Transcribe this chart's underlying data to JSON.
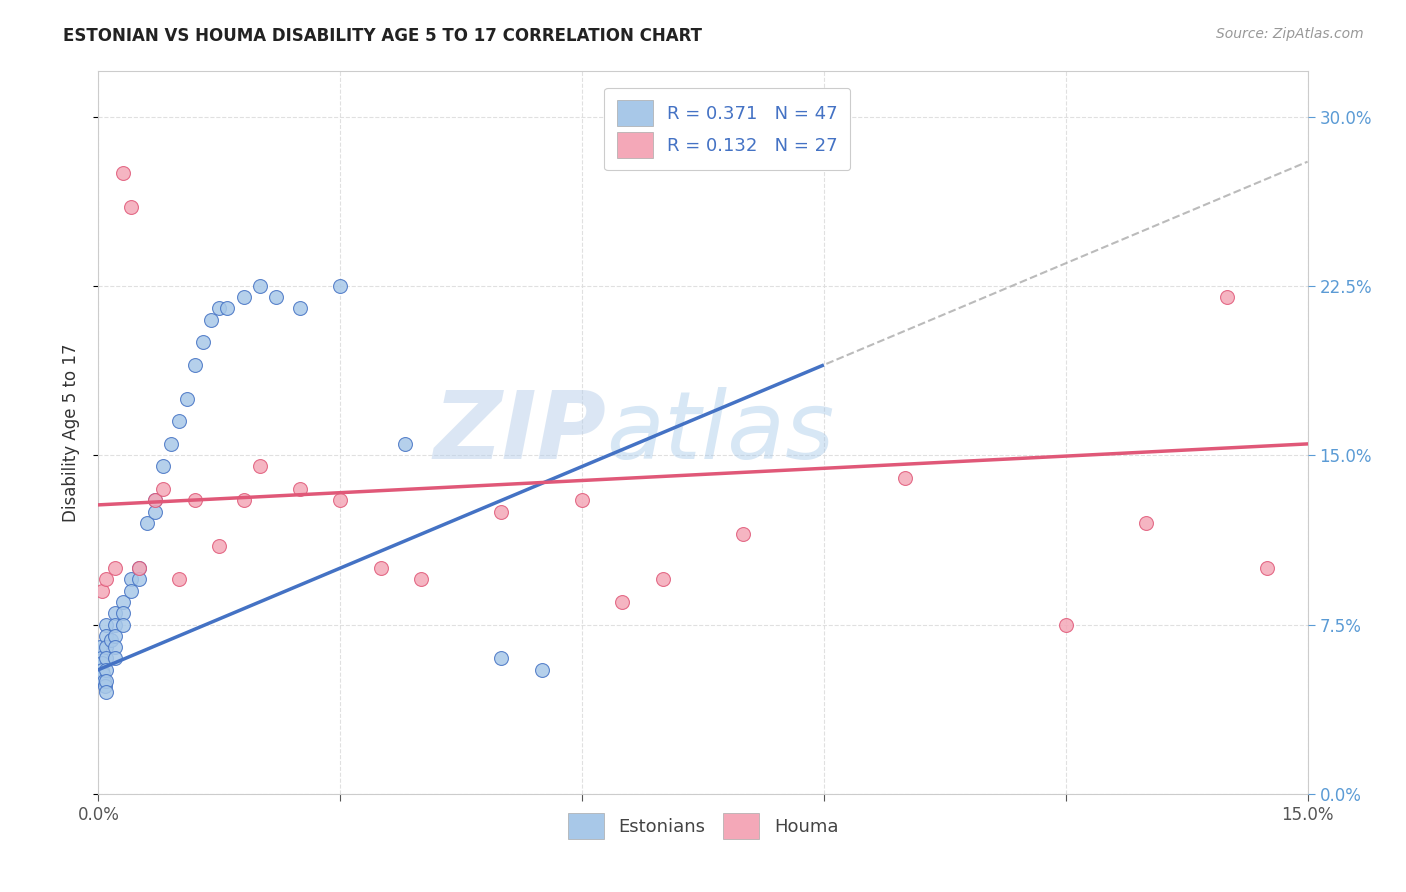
{
  "title": "ESTONIAN VS HOUMA DISABILITY AGE 5 TO 17 CORRELATION CHART",
  "source": "Source: ZipAtlas.com",
  "ylabel": "Disability Age 5 to 17",
  "watermark": "ZIPatlas",
  "xlim": [
    0.0,
    0.15
  ],
  "ylim": [
    0.0,
    0.32
  ],
  "xticks": [
    0.0,
    0.03,
    0.06,
    0.09,
    0.12,
    0.15
  ],
  "xtick_labels": [
    "0.0%",
    "",
    "",
    "",
    "",
    "15.0%"
  ],
  "yticks": [
    0.0,
    0.075,
    0.15,
    0.225,
    0.3
  ],
  "ytick_labels_right": [
    "0.0%",
    "7.5%",
    "15.0%",
    "22.5%",
    "30.0%"
  ],
  "color_estonian": "#A8C8E8",
  "color_houma": "#F4A8B8",
  "color_line_estonian": "#4472C4",
  "color_line_houma": "#E05878",
  "color_tick_blue": "#5B9BD5",
  "color_tick_dark": "#555555",
  "background_color": "#FFFFFF",
  "grid_color": "#DDDDDD",
  "title_color": "#222222",
  "watermark_color": "#C5D8EF",
  "estonian_x": [
    0.0002,
    0.0003,
    0.0004,
    0.0005,
    0.0006,
    0.0007,
    0.0008,
    0.001,
    0.001,
    0.001,
    0.001,
    0.001,
    0.001,
    0.001,
    0.0015,
    0.002,
    0.002,
    0.002,
    0.002,
    0.002,
    0.003,
    0.003,
    0.003,
    0.004,
    0.004,
    0.005,
    0.005,
    0.006,
    0.007,
    0.007,
    0.008,
    0.009,
    0.01,
    0.011,
    0.012,
    0.013,
    0.014,
    0.015,
    0.016,
    0.018,
    0.02,
    0.022,
    0.025,
    0.03,
    0.038,
    0.05,
    0.055
  ],
  "estonian_y": [
    0.065,
    0.06,
    0.058,
    0.055,
    0.053,
    0.05,
    0.048,
    0.075,
    0.07,
    0.065,
    0.06,
    0.055,
    0.05,
    0.045,
    0.068,
    0.08,
    0.075,
    0.07,
    0.065,
    0.06,
    0.085,
    0.08,
    0.075,
    0.095,
    0.09,
    0.1,
    0.095,
    0.12,
    0.13,
    0.125,
    0.145,
    0.155,
    0.165,
    0.175,
    0.19,
    0.2,
    0.21,
    0.215,
    0.215,
    0.22,
    0.225,
    0.22,
    0.215,
    0.225,
    0.155,
    0.06,
    0.055
  ],
  "houma_x": [
    0.0005,
    0.001,
    0.002,
    0.003,
    0.004,
    0.005,
    0.007,
    0.008,
    0.01,
    0.012,
    0.015,
    0.018,
    0.02,
    0.025,
    0.03,
    0.035,
    0.04,
    0.05,
    0.06,
    0.065,
    0.07,
    0.08,
    0.1,
    0.12,
    0.13,
    0.14,
    0.145
  ],
  "houma_y": [
    0.09,
    0.095,
    0.1,
    0.275,
    0.26,
    0.1,
    0.13,
    0.135,
    0.095,
    0.13,
    0.11,
    0.13,
    0.145,
    0.135,
    0.13,
    0.1,
    0.095,
    0.125,
    0.13,
    0.085,
    0.095,
    0.115,
    0.14,
    0.075,
    0.12,
    0.22,
    0.1
  ]
}
